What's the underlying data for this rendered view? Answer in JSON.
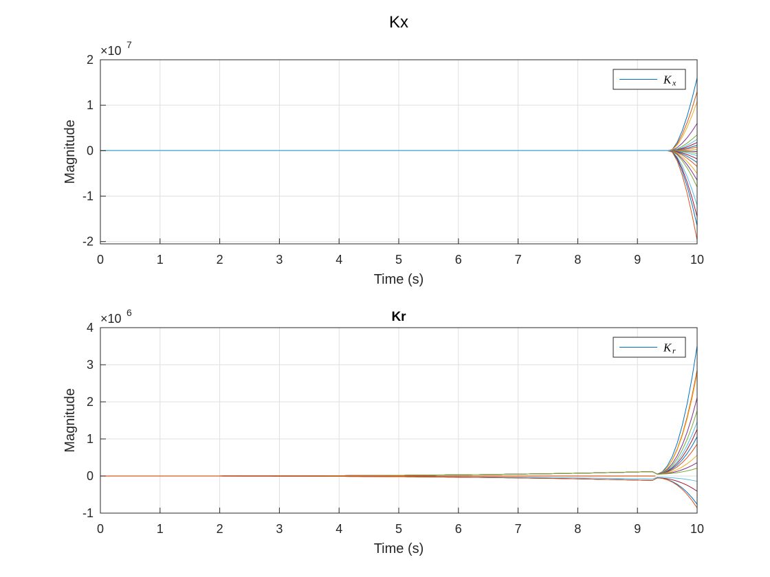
{
  "figure": {
    "background": "#ffffff",
    "grid_color": "#dfdfdf",
    "axis_color": "#262626",
    "series_colors": [
      "#0072BD",
      "#D95319",
      "#EDB120",
      "#7E2F8E",
      "#77AC30",
      "#4DBEEE",
      "#A2142F"
    ]
  },
  "chart_data": [
    {
      "type": "line",
      "title": "Kx",
      "title_bold": false,
      "xlabel": "Time (s)",
      "ylabel": "Magnitude",
      "xlim": [
        0,
        10
      ],
      "ylim": [
        -20500000.0,
        20000000.0
      ],
      "xticks": [
        0,
        1,
        2,
        3,
        4,
        5,
        6,
        7,
        8,
        9,
        10
      ],
      "xtick_labels": [
        "0",
        "1",
        "2",
        "3",
        "4",
        "5",
        "6",
        "7",
        "8",
        "9",
        "10"
      ],
      "yticks": [
        -20000000.0,
        -10000000.0,
        0,
        10000000.0,
        20000000.0
      ],
      "ytick_labels": [
        "-2",
        "-1",
        "0",
        "1",
        "2"
      ],
      "exponent_base": "×10",
      "exponent_power": "7",
      "grid": true,
      "legend": {
        "label": "K",
        "subscript": "x",
        "position": "top-right"
      },
      "divergence_start": 9.55,
      "series_final_values": [
        16000000.0,
        13000000.0,
        10800000.0,
        6000000.0,
        3500000.0,
        2500000.0,
        1800000.0,
        1200000.0,
        800000.0,
        300000.0,
        -200000.0,
        -600000.0,
        -1100000.0,
        -1800000.0,
        -2600000.0,
        -3500000.0,
        -5000000.0,
        -6500000.0,
        -8000000.0,
        -12000000.0,
        -14500000.0,
        -16500000.0,
        -19700000.0
      ]
    },
    {
      "type": "line",
      "title": "Kr",
      "title_bold": true,
      "xlabel": "Time (s)",
      "ylabel": "Magnitude",
      "xlim": [
        0,
        10
      ],
      "ylim": [
        -1000000.0,
        4000000.0
      ],
      "xticks": [
        0,
        1,
        2,
        3,
        4,
        5,
        6,
        7,
        8,
        9,
        10
      ],
      "xtick_labels": [
        "0",
        "1",
        "2",
        "3",
        "4",
        "5",
        "6",
        "7",
        "8",
        "9",
        "10"
      ],
      "yticks": [
        -1000000.0,
        0,
        1000000.0,
        2000000.0,
        3000000.0,
        4000000.0
      ],
      "ytick_labels": [
        "-1",
        "0",
        "1",
        "2",
        "3",
        "4"
      ],
      "exponent_base": "×10",
      "exponent_power": "6",
      "grid": true,
      "legend": {
        "label": "K",
        "subscript": "r",
        "position": "top-right"
      },
      "divergence_start": 9.3,
      "series_final_values": [
        3450000.0,
        2800000.0,
        2700000.0,
        2050000.0,
        1700000.0,
        1400000.0,
        1200000.0,
        1000000.0,
        800000.0,
        500000.0,
        300000.0,
        150000.0,
        -100000.0,
        -350000.0,
        -700000.0,
        -800000.0
      ]
    }
  ]
}
